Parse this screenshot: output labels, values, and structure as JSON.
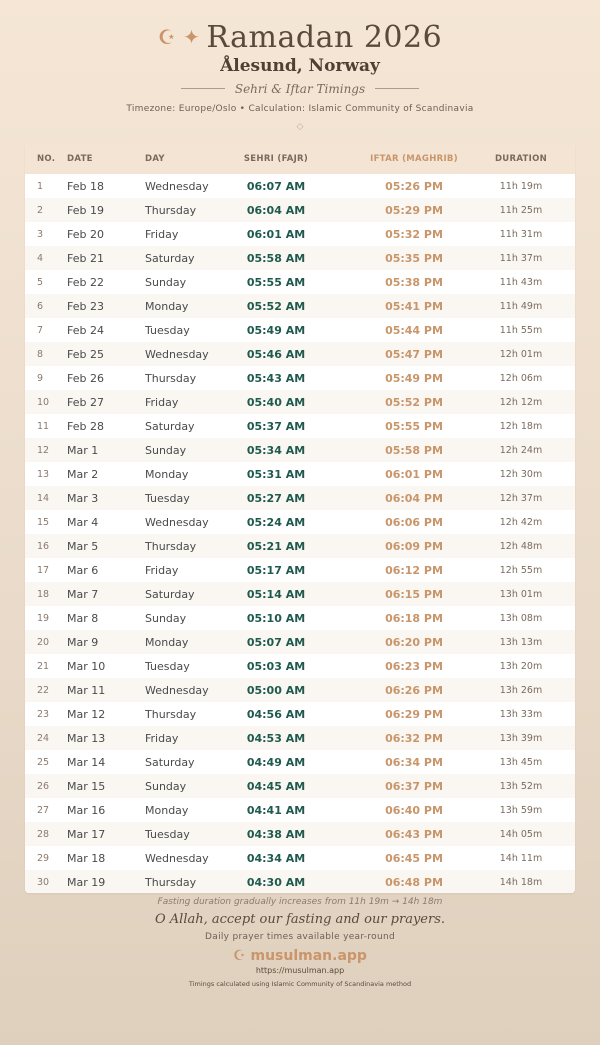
{
  "header": {
    "crescent_icon": "☪",
    "star_icon": "✦",
    "title": "Ramadan 2026",
    "city": "Ålesund, Norway",
    "subtitle": "Sehri & Iftar Timings",
    "info": "Timezone: Europe/Oslo • Calculation: Islamic Community of Scandinavia",
    "ornament": "◇"
  },
  "colors": {
    "sehri": "#1f5a4e",
    "iftar": "#c9956a",
    "header_bg": "#f3e4d3"
  },
  "table": {
    "columns": [
      "NO.",
      "DATE",
      "DAY",
      "SEHRI (FAJR)",
      "IFTAR (MAGHRIB)",
      "DURATION"
    ],
    "rows": [
      [
        "1",
        "Feb 18",
        "Wednesday",
        "06:07 AM",
        "05:26 PM",
        "11h 19m"
      ],
      [
        "2",
        "Feb 19",
        "Thursday",
        "06:04 AM",
        "05:29 PM",
        "11h 25m"
      ],
      [
        "3",
        "Feb 20",
        "Friday",
        "06:01 AM",
        "05:32 PM",
        "11h 31m"
      ],
      [
        "4",
        "Feb 21",
        "Saturday",
        "05:58 AM",
        "05:35 PM",
        "11h 37m"
      ],
      [
        "5",
        "Feb 22",
        "Sunday",
        "05:55 AM",
        "05:38 PM",
        "11h 43m"
      ],
      [
        "6",
        "Feb 23",
        "Monday",
        "05:52 AM",
        "05:41 PM",
        "11h 49m"
      ],
      [
        "7",
        "Feb 24",
        "Tuesday",
        "05:49 AM",
        "05:44 PM",
        "11h 55m"
      ],
      [
        "8",
        "Feb 25",
        "Wednesday",
        "05:46 AM",
        "05:47 PM",
        "12h 01m"
      ],
      [
        "9",
        "Feb 26",
        "Thursday",
        "05:43 AM",
        "05:49 PM",
        "12h 06m"
      ],
      [
        "10",
        "Feb 27",
        "Friday",
        "05:40 AM",
        "05:52 PM",
        "12h 12m"
      ],
      [
        "11",
        "Feb 28",
        "Saturday",
        "05:37 AM",
        "05:55 PM",
        "12h 18m"
      ],
      [
        "12",
        "Mar 1",
        "Sunday",
        "05:34 AM",
        "05:58 PM",
        "12h 24m"
      ],
      [
        "13",
        "Mar 2",
        "Monday",
        "05:31 AM",
        "06:01 PM",
        "12h 30m"
      ],
      [
        "14",
        "Mar 3",
        "Tuesday",
        "05:27 AM",
        "06:04 PM",
        "12h 37m"
      ],
      [
        "15",
        "Mar 4",
        "Wednesday",
        "05:24 AM",
        "06:06 PM",
        "12h 42m"
      ],
      [
        "16",
        "Mar 5",
        "Thursday",
        "05:21 AM",
        "06:09 PM",
        "12h 48m"
      ],
      [
        "17",
        "Mar 6",
        "Friday",
        "05:17 AM",
        "06:12 PM",
        "12h 55m"
      ],
      [
        "18",
        "Mar 7",
        "Saturday",
        "05:14 AM",
        "06:15 PM",
        "13h 01m"
      ],
      [
        "19",
        "Mar 8",
        "Sunday",
        "05:10 AM",
        "06:18 PM",
        "13h 08m"
      ],
      [
        "20",
        "Mar 9",
        "Monday",
        "05:07 AM",
        "06:20 PM",
        "13h 13m"
      ],
      [
        "21",
        "Mar 10",
        "Tuesday",
        "05:03 AM",
        "06:23 PM",
        "13h 20m"
      ],
      [
        "22",
        "Mar 11",
        "Wednesday",
        "05:00 AM",
        "06:26 PM",
        "13h 26m"
      ],
      [
        "23",
        "Mar 12",
        "Thursday",
        "04:56 AM",
        "06:29 PM",
        "13h 33m"
      ],
      [
        "24",
        "Mar 13",
        "Friday",
        "04:53 AM",
        "06:32 PM",
        "13h 39m"
      ],
      [
        "25",
        "Mar 14",
        "Saturday",
        "04:49 AM",
        "06:34 PM",
        "13h 45m"
      ],
      [
        "26",
        "Mar 15",
        "Sunday",
        "04:45 AM",
        "06:37 PM",
        "13h 52m"
      ],
      [
        "27",
        "Mar 16",
        "Monday",
        "04:41 AM",
        "06:40 PM",
        "13h 59m"
      ],
      [
        "28",
        "Mar 17",
        "Tuesday",
        "04:38 AM",
        "06:43 PM",
        "14h 05m"
      ],
      [
        "29",
        "Mar 18",
        "Wednesday",
        "04:34 AM",
        "06:45 PM",
        "14h 11m"
      ],
      [
        "30",
        "Mar 19",
        "Thursday",
        "04:30 AM",
        "06:48 PM",
        "14h 18m"
      ]
    ]
  },
  "footer": {
    "note": "Fasting duration gradually increases from 11h 19m → 14h 18m",
    "dua": "O Allah, accept our fasting and our prayers.",
    "tagline": "Daily prayer times available year-round",
    "brand_icon": "☪",
    "brand": "musulman.app",
    "url": "https://musulman.app",
    "method": "Timings calculated using Islamic Community of Scandinavia method"
  }
}
